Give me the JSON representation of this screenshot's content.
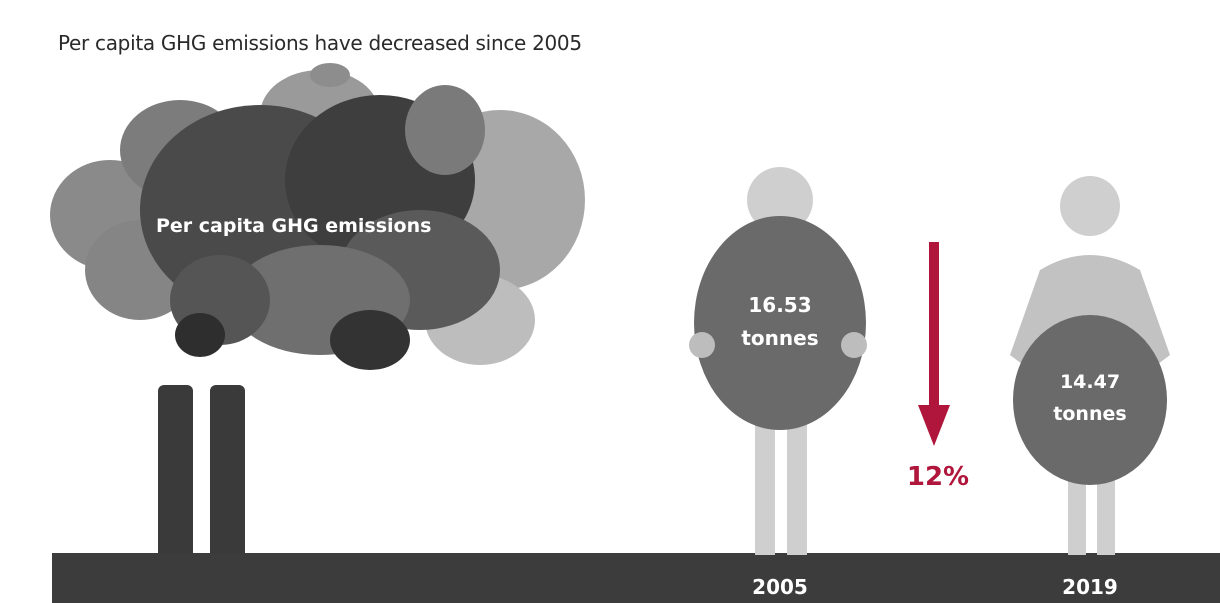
{
  "headline": "Per capita GHG emissions have decreased since 2005",
  "cloud_label": "Per capita GHG emissions",
  "figures": [
    {
      "year": "2005",
      "value": "16.53",
      "unit": "tonnes"
    },
    {
      "year": "2019",
      "value": "14.47",
      "unit": "tonnes"
    }
  ],
  "change_label": "12%",
  "colors": {
    "ground": "#3c3c3c",
    "chimney": "#3a3a3a",
    "person_light": "#cfcfcf",
    "person_body_2019": "#c2c2c2",
    "bubble": "#6a6a6a",
    "arrow": "#b0163c",
    "cloud_dark": "#3e3e3e",
    "cloud_mid": "#6f6f6f",
    "cloud_light": "#a8a8a8"
  }
}
